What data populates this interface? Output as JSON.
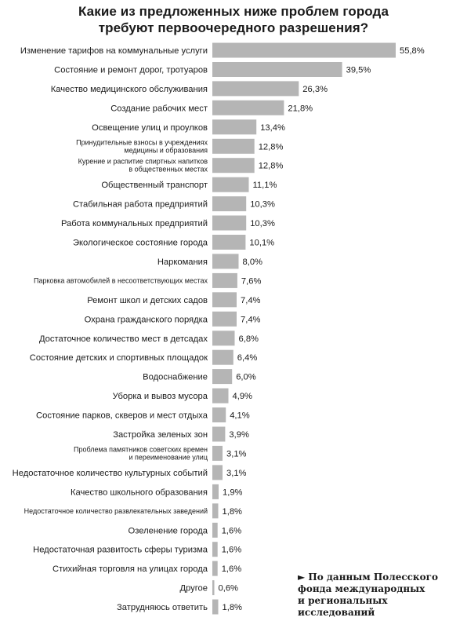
{
  "chart_data": {
    "type": "bar",
    "orientation": "horizontal",
    "title_lines": [
      "Какие из предложенных ниже проблем города",
      "требуют первоочередного разрешения?"
    ],
    "bar_color": "#b5b5b5",
    "xlim": [
      0,
      60
    ],
    "grid": false,
    "categories": [
      [
        "Изменение тарифов на коммунальные услуги"
      ],
      [
        "Состояние и ремонт дорог, тротуаров"
      ],
      [
        "Качество медицинского обслуживания"
      ],
      [
        "Создание рабочих мест"
      ],
      [
        "Освещение улиц и проулков"
      ],
      [
        "Принудительные взносы в учреждениях",
        "медицины и образования"
      ],
      [
        "Курение и распитие спиртных напитков",
        "в общественных местах"
      ],
      [
        "Общественный транспорт"
      ],
      [
        "Стабильная работа предприятий"
      ],
      [
        "Работа коммунальных предприятий"
      ],
      [
        "Экологическое состояние города"
      ],
      [
        "Наркомания"
      ],
      [
        "Парковка автомобилей в несоответствующих местах"
      ],
      [
        "Ремонт школ и детских садов"
      ],
      [
        "Охрана гражданского порядка"
      ],
      [
        "Достаточное количество мест в детсадах"
      ],
      [
        "Состояние детских и спортивных площадок"
      ],
      [
        "Водоснабжение"
      ],
      [
        "Уборка и вывоз мусора"
      ],
      [
        "Состояние парков, скверов и мест отдыха"
      ],
      [
        "Застройка зеленых зон"
      ],
      [
        "Проблема памятников советских времен",
        "и переименование улиц"
      ],
      [
        "Недостаточное количество культурных событий"
      ],
      [
        "Качество школьного образования"
      ],
      [
        "Недостаточное количество развлекательных заведений"
      ],
      [
        "Озеленение города"
      ],
      [
        "Недостаточная развитость сферы туризма"
      ],
      [
        "Стихийная торговля на улицах города"
      ],
      [
        "Другое"
      ],
      [
        "Затрудняюсь ответить"
      ]
    ],
    "values": [
      55.8,
      39.5,
      26.3,
      21.8,
      13.4,
      12.8,
      12.8,
      11.1,
      10.3,
      10.3,
      10.1,
      8.0,
      7.6,
      7.4,
      7.4,
      6.8,
      6.4,
      6.0,
      4.9,
      4.1,
      3.9,
      3.1,
      3.1,
      1.9,
      1.8,
      1.6,
      1.6,
      1.6,
      0.6,
      1.8
    ],
    "value_labels": [
      "55,8%",
      "39,5%",
      "26,3%",
      "21,8%",
      "13,4%",
      "12,8%",
      "12,8%",
      "11,1%",
      "10,3%",
      "10,3%",
      "10,1%",
      "8,0%",
      "7,6%",
      "7,4%",
      "7,4%",
      "6,8%",
      "6,4%",
      "6,0%",
      "4,9%",
      "4,1%",
      "3,9%",
      "3,1%",
      "3,1%",
      "1,9%",
      "1,8%",
      "1,6%",
      "1,6%",
      "1,6%",
      "0,6%",
      "1,8%"
    ],
    "small_text_rows": [
      5,
      6,
      12,
      21,
      24
    ]
  },
  "source_note": {
    "lines": [
      "► По данным Полесского",
      "фонда международных",
      "и региональных",
      "исследований"
    ]
  }
}
